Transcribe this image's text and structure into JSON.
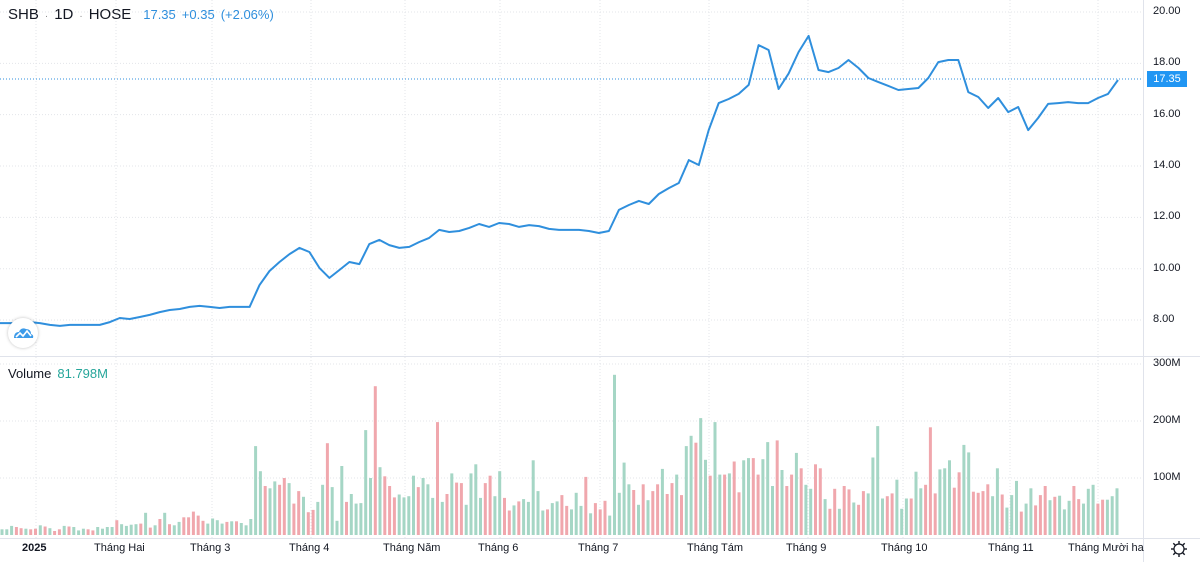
{
  "header": {
    "symbol": "SHB",
    "interval": "1D",
    "exchange": "HOSE",
    "last": "17.35",
    "change": "+0.35",
    "change_pct": "(+2.06%)"
  },
  "volume_legend": {
    "label": "Volume",
    "value": "81.798M"
  },
  "last_price_label": "17.35",
  "colors": {
    "line": "#2f8fdd",
    "up_volume": "#a5d6c5",
    "down_volume": "#f0a7ad",
    "last_price_bg": "#2196f3"
  },
  "icons": {
    "logo": "tradingview-cloud-icon",
    "settings": "gear-icon"
  },
  "chart_data": [
    {
      "type": "line",
      "title": "",
      "y_axis_ticks": [
        "20.00",
        "18.00",
        "16.00",
        "14.00",
        "12.00",
        "10.00",
        "8.00"
      ],
      "ylim": [
        7.4,
        20.2
      ],
      "x_tick_labels": [
        "2025",
        "Tháng Hai",
        "Tháng 3",
        "Tháng 4",
        "Tháng Năm",
        "Tháng 6",
        "Tháng 7",
        "Tháng Tám",
        "Tháng 9",
        "Tháng 10",
        "Tháng 11",
        "Tháng Mười ha"
      ],
      "grid": true,
      "series": [
        {
          "values": [
            7.88,
            7.88,
            7.88,
            7.92,
            7.88,
            7.81,
            7.77,
            7.81,
            7.81,
            7.81,
            7.81,
            7.92,
            8.08,
            8.04,
            8.12,
            8.2,
            8.31,
            8.39,
            8.43,
            8.51,
            8.55,
            8.51,
            8.47,
            8.51,
            8.51,
            8.51,
            9.36,
            9.91,
            10.26,
            10.57,
            10.81,
            10.65,
            10.03,
            9.64,
            9.95,
            10.26,
            10.18,
            10.96,
            11.12,
            10.92,
            10.81,
            10.85,
            11.04,
            11.2,
            11.51,
            11.43,
            11.47,
            11.59,
            11.74,
            11.63,
            11.78,
            11.74,
            11.63,
            11.7,
            11.66,
            11.55,
            11.51,
            11.51,
            11.51,
            11.47,
            11.39,
            11.47,
            12.29,
            12.48,
            12.64,
            12.52,
            12.91,
            13.14,
            13.34,
            14.23,
            14.04,
            15.4,
            16.45,
            16.61,
            16.81,
            17.16,
            18.71,
            18.52,
            17.0,
            17.6,
            18.44,
            19.07,
            17.74,
            17.66,
            17.82,
            18.13,
            17.82,
            17.43,
            17.27,
            17.12,
            16.96,
            17.0,
            17.04,
            17.43,
            18.05,
            18.13,
            18.13,
            16.88,
            16.69,
            16.26,
            16.65,
            16.1,
            16.3,
            15.4,
            15.87,
            16.42,
            16.45,
            16.49,
            16.45,
            16.45,
            16.65,
            16.81,
            17.35
          ]
        }
      ]
    },
    {
      "type": "bar",
      "title": "",
      "y_axis_ticks": [
        "300M",
        "200M",
        "100M"
      ],
      "ylim": [
        0,
        300
      ],
      "unit": "M",
      "values": [
        10,
        10,
        16,
        14,
        12,
        11,
        10,
        11,
        17,
        15,
        12,
        7,
        10,
        16,
        15,
        14,
        8,
        11,
        10,
        8,
        14,
        11,
        14,
        14,
        26,
        19,
        16,
        18,
        19,
        20,
        39,
        13,
        17,
        28,
        39,
        19,
        17,
        23,
        31,
        31,
        41,
        34,
        25,
        20,
        29,
        26,
        20,
        23,
        24,
        24,
        21,
        17,
        28,
        156,
        112,
        86,
        82,
        94,
        88,
        100,
        91,
        55,
        77,
        67,
        40,
        44,
        58,
        88,
        161,
        84,
        25,
        121,
        58,
        72,
        55,
        56,
        184,
        100,
        261,
        119,
        103,
        86,
        66,
        71,
        66,
        68,
        104,
        84,
        100,
        89,
        65,
        198,
        58,
        72,
        108,
        92,
        91,
        53,
        108,
        124,
        65,
        91,
        104,
        68,
        112,
        65,
        43,
        52,
        59,
        63,
        58,
        131,
        77,
        43,
        45,
        56,
        59,
        70,
        51,
        45,
        74,
        51,
        102,
        38,
        56,
        45,
        60,
        34,
        281,
        74,
        127,
        89,
        79,
        53,
        89,
        61,
        77,
        89,
        116,
        72,
        91,
        106,
        70,
        156,
        174,
        162,
        205,
        132,
        104,
        198,
        106,
        106,
        108,
        129,
        75,
        131,
        135,
        135,
        106,
        133,
        163,
        86,
        166,
        114,
        86,
        106,
        144,
        117,
        88,
        81,
        124,
        117,
        63,
        46,
        81,
        46,
        86,
        80,
        57,
        53,
        77,
        73,
        136,
        191,
        64,
        68,
        73,
        97,
        46,
        64,
        64,
        111,
        82,
        88,
        189,
        73,
        115,
        117,
        131,
        83,
        110,
        158,
        145,
        76,
        74,
        77,
        89,
        68,
        117,
        71,
        48,
        70,
        95,
        41,
        55,
        82,
        52,
        70,
        86,
        61,
        67,
        69,
        45,
        60,
        86,
        63,
        55,
        81,
        88,
        55,
        62,
        62,
        68,
        82
      ],
      "direction": "uuudduddududduduuudduuuuduuuududududuuddddduuuududuuuuuduudduddudduuduuuduuuuududdduuuuduuudududduuuudduudduduuuuuduudduuududdduuuuudududdudduduuduuduududduudduuududduduuddudduddudduuuudduuuduuddduuudduudddduuduuuduuddduduuudduuudduuuudduuuuuuuuuuuduuuuuu"
    }
  ]
}
